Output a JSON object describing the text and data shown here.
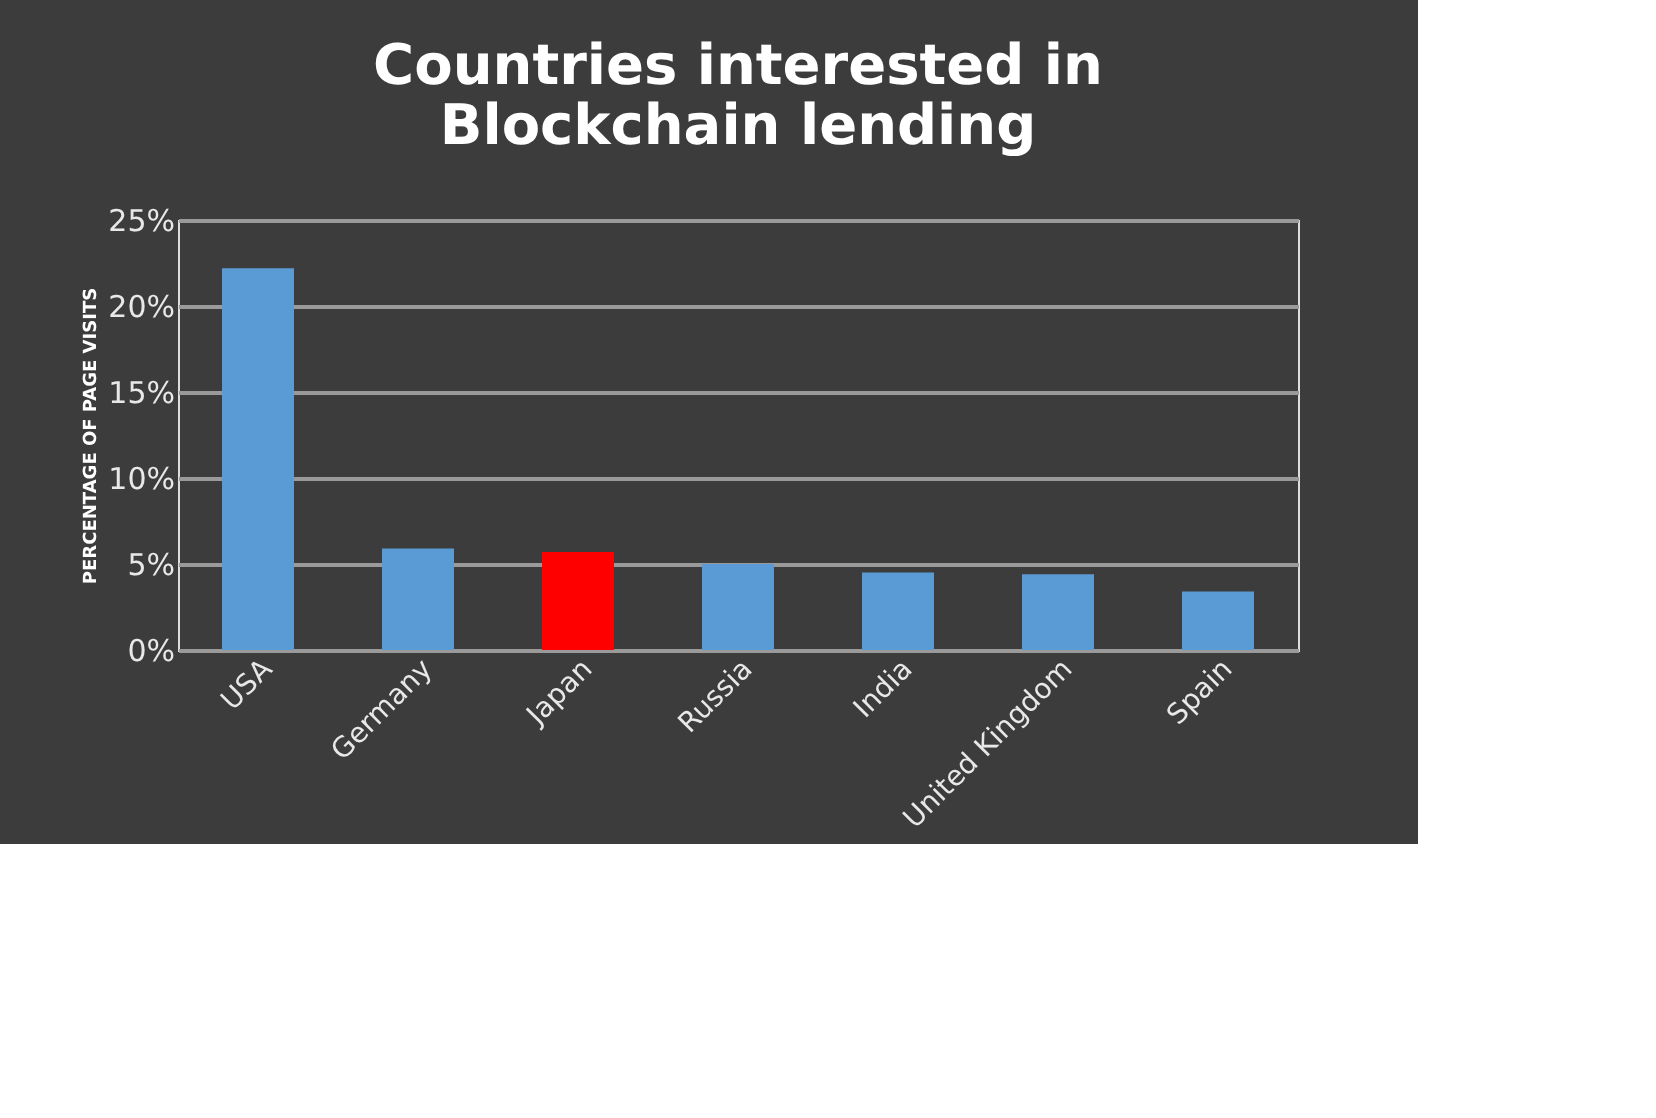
{
  "chart_data": {
    "type": "bar",
    "title": [
      "Countries interested in",
      "Blockchain lending"
    ],
    "ylabel": "PERCENTAGE OF PAGE VISITS",
    "categories": [
      "USA",
      "Germany",
      "Japan",
      "Russia",
      "India",
      "United Kingdom",
      "Spain"
    ],
    "values": [
      22.2,
      5.9,
      5.7,
      5.0,
      4.5,
      4.4,
      3.4
    ],
    "colors": [
      "#5b9bd5",
      "#5b9bd5",
      "#ff0000",
      "#5b9bd5",
      "#5b9bd5",
      "#5b9bd5",
      "#5b9bd5"
    ],
    "ylim": [
      0,
      25
    ],
    "yticks": [
      {
        "value": 0,
        "label": "0%"
      },
      {
        "value": 5,
        "label": "5%"
      },
      {
        "value": 10,
        "label": "10%"
      },
      {
        "value": 15,
        "label": "15%"
      },
      {
        "value": 20,
        "label": "20%"
      },
      {
        "value": 25,
        "label": "25%"
      }
    ],
    "grid": "y"
  }
}
